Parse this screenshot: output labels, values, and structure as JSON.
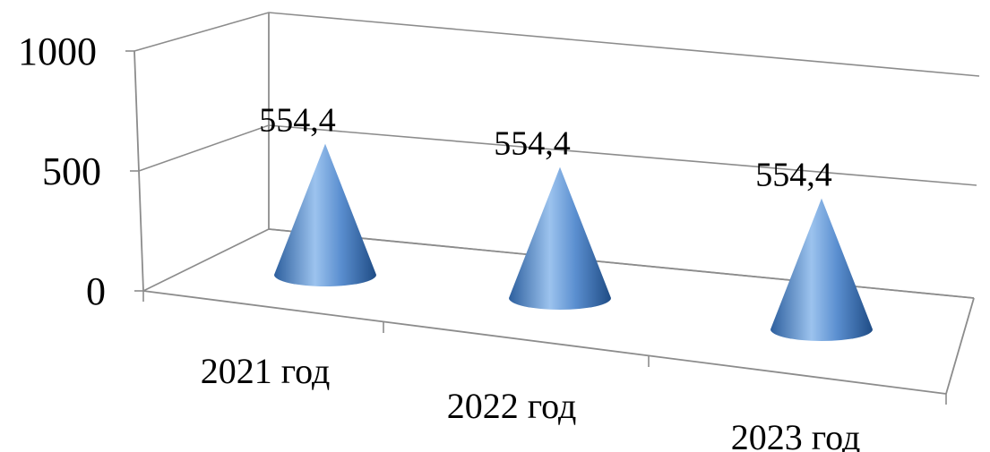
{
  "chart_data": {
    "type": "bar",
    "shape": "cone",
    "view": "3d",
    "categories": [
      "2021 год",
      "2022 год",
      "2023 год"
    ],
    "series": [
      {
        "values": [
          554.4,
          554.4,
          554.4
        ]
      }
    ],
    "data_labels": [
      "554,4",
      "554,4",
      "554,4"
    ],
    "y_tick_labels": [
      "0",
      "500",
      "1000"
    ],
    "y_ticks": [
      0,
      500,
      1000
    ],
    "ylim": [
      0,
      1000
    ],
    "grid": true,
    "legend": "none",
    "colors": {
      "cone_light": "#9cc3ee",
      "cone_mid": "#5b8fd0",
      "cone_dark": "#2d5f9e",
      "grid": "#8c8c8c"
    }
  }
}
